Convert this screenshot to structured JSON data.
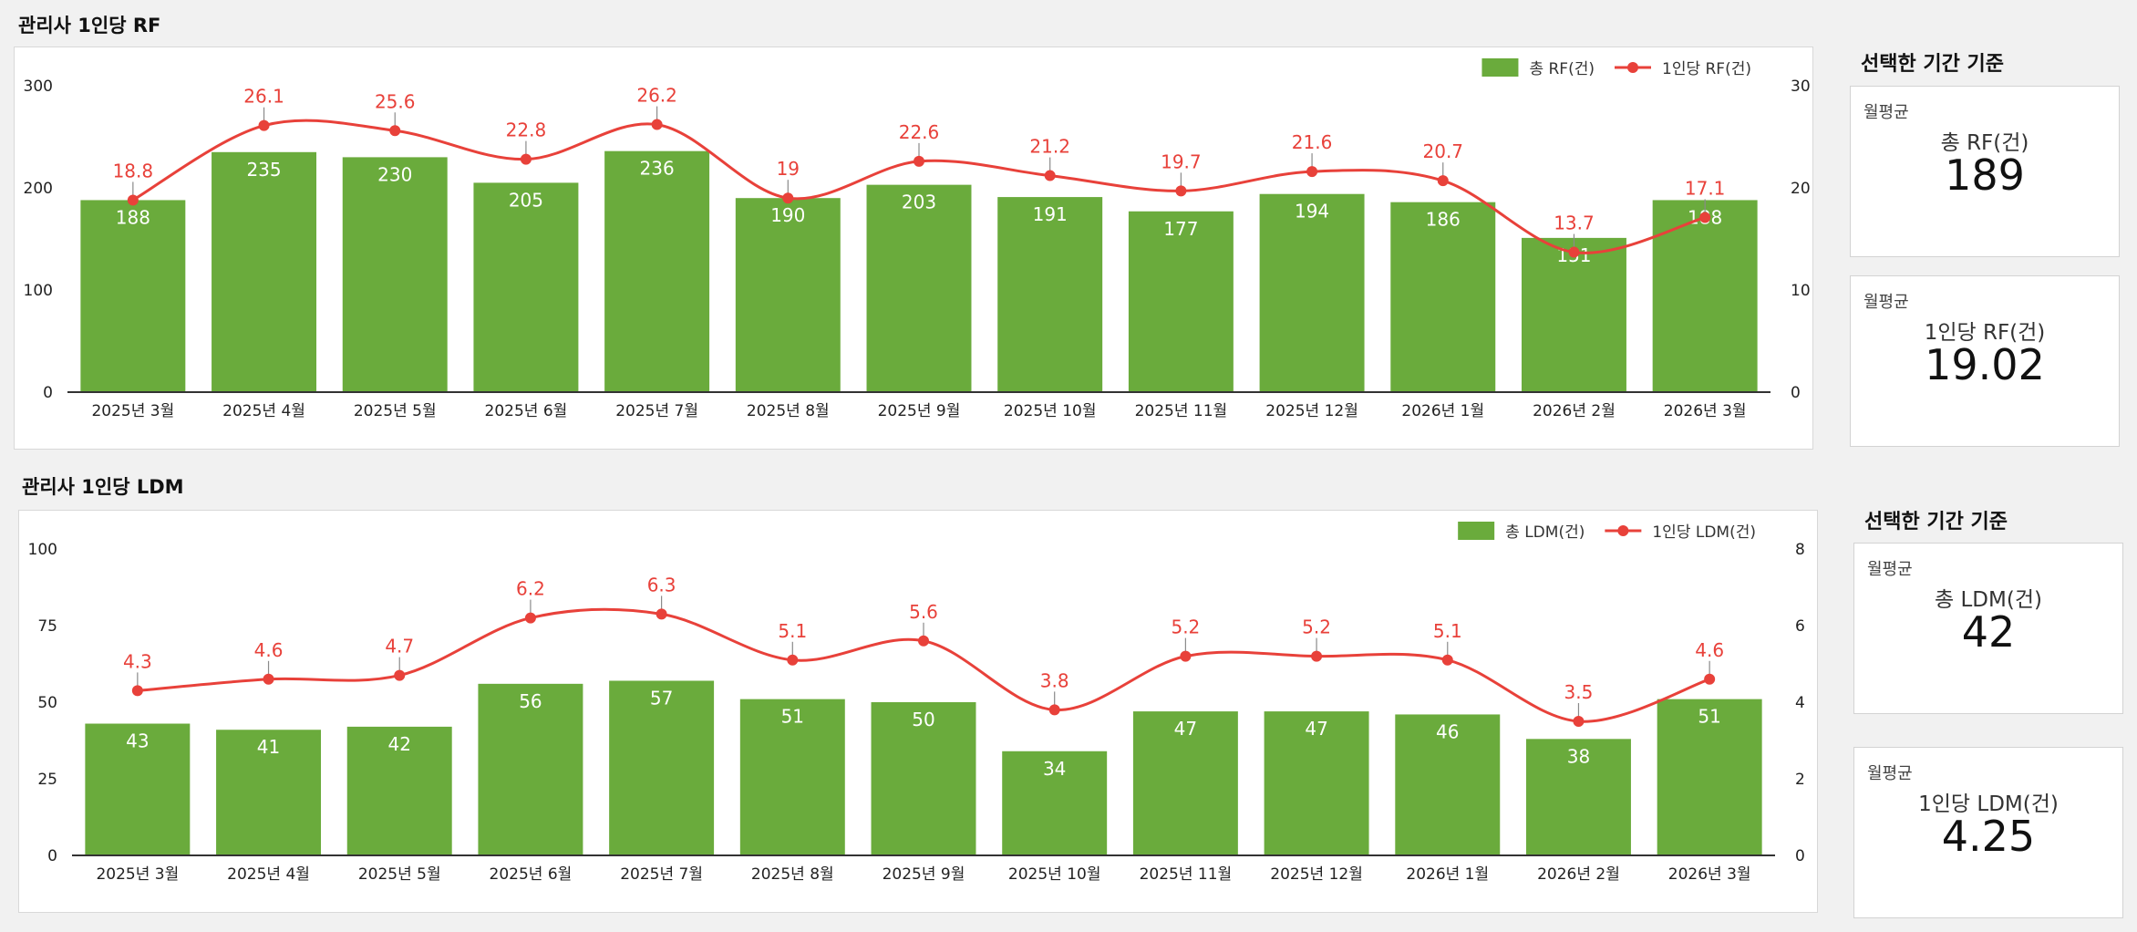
{
  "rf": {
    "title": "관리사 1인당 RF",
    "side_title": "선택한 기간 기준",
    "cards": [
      {
        "caption": "월평균",
        "label": "총 RF(건)",
        "value": "189"
      },
      {
        "caption": "월평균",
        "label": "1인당 RF(건)",
        "value": "19.02"
      }
    ]
  },
  "ldm": {
    "title": "관리사 1인당 LDM",
    "side_title": "선택한 기간 기준",
    "cards": [
      {
        "caption": "월평균",
        "label": "총 LDM(건)",
        "value": "42"
      },
      {
        "caption": "월평균",
        "label": "1인당 LDM(건)",
        "value": "4.25"
      }
    ]
  },
  "chart_data": [
    {
      "type": "bar",
      "title": "관리사 1인당 RF",
      "categories": [
        "2025년 3월",
        "2025년 4월",
        "2025년 5월",
        "2025년 6월",
        "2025년 7월",
        "2025년 8월",
        "2025년 9월",
        "2025년 10월",
        "2025년 11월",
        "2025년 12월",
        "2026년 1월",
        "2026년 2월",
        "2026년 3월"
      ],
      "series": [
        {
          "name": "총 RF(건)",
          "type": "bar",
          "axis": "left",
          "color": "#6aab3c",
          "values": [
            188,
            235,
            230,
            205,
            236,
            190,
            203,
            191,
            177,
            194,
            186,
            151,
            188
          ]
        },
        {
          "name": "1인당 RF(건)",
          "type": "line",
          "axis": "right",
          "color": "#e8413a",
          "values": [
            18.8,
            26.1,
            25.6,
            22.8,
            26.2,
            19,
            22.6,
            21.2,
            19.7,
            21.6,
            20.7,
            13.7,
            17.1
          ]
        }
      ],
      "left_axis": {
        "min": 0,
        "max": 300,
        "ticks": [
          0,
          100,
          200,
          300
        ]
      },
      "right_axis": {
        "min": 0,
        "max": 30,
        "ticks": [
          0,
          10,
          20,
          30
        ]
      },
      "legend": "top-right"
    },
    {
      "type": "bar",
      "title": "관리사 1인당 LDM",
      "categories": [
        "2025년 3월",
        "2025년 4월",
        "2025년 5월",
        "2025년 6월",
        "2025년 7월",
        "2025년 8월",
        "2025년 9월",
        "2025년 10월",
        "2025년 11월",
        "2025년 12월",
        "2026년 1월",
        "2026년 2월",
        "2026년 3월"
      ],
      "series": [
        {
          "name": "총 LDM(건)",
          "type": "bar",
          "axis": "left",
          "color": "#6aab3c",
          "values": [
            43,
            41,
            42,
            56,
            57,
            51,
            50,
            34,
            47,
            47,
            46,
            38,
            51
          ]
        },
        {
          "name": "1인당 LDM(건)",
          "type": "line",
          "axis": "right",
          "color": "#e8413a",
          "values": [
            4.3,
            4.6,
            4.7,
            6.2,
            6.3,
            5.1,
            5.6,
            3.8,
            5.2,
            5.2,
            5.1,
            3.5,
            4.6
          ]
        }
      ],
      "left_axis": {
        "min": 0,
        "max": 100,
        "ticks": [
          0,
          25,
          50,
          75,
          100
        ]
      },
      "right_axis": {
        "min": 0,
        "max": 8,
        "ticks": [
          0,
          2,
          4,
          6,
          8
        ]
      },
      "legend": "top-right"
    }
  ]
}
